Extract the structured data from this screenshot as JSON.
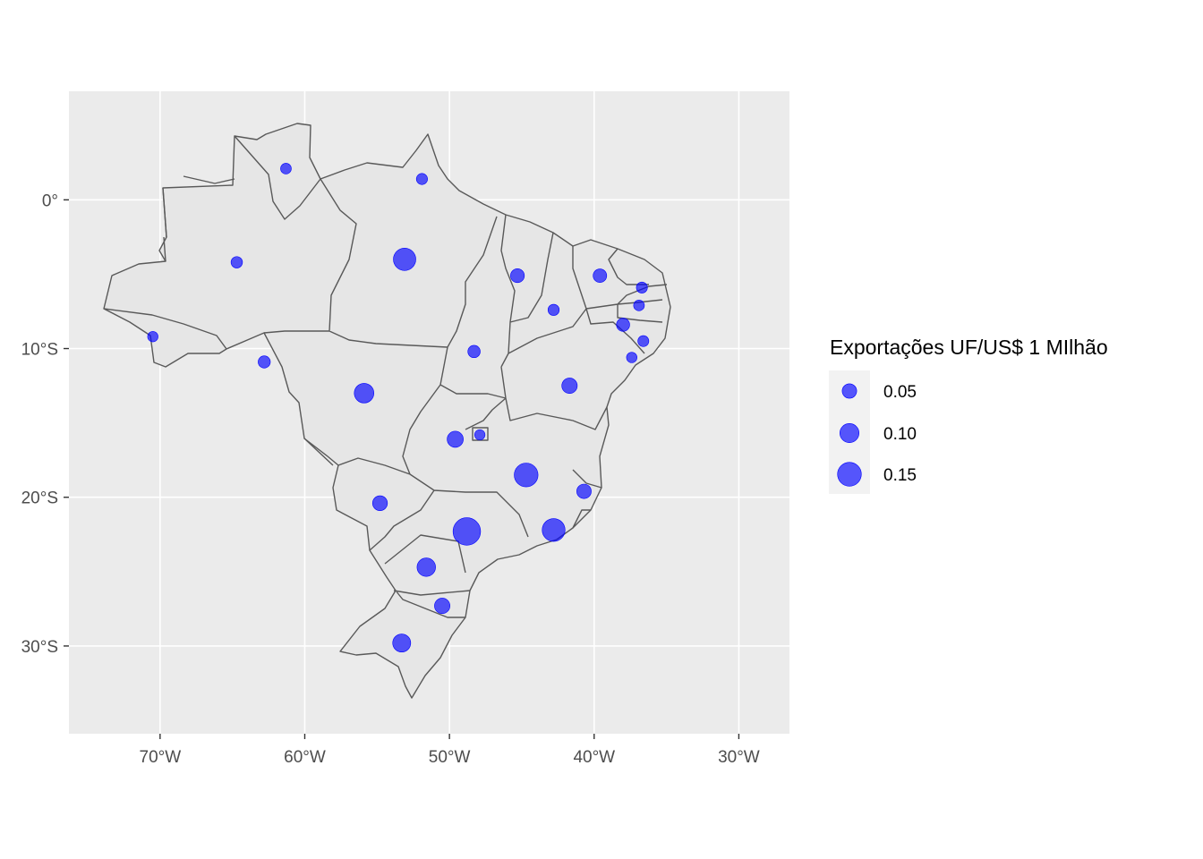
{
  "chart_data": {
    "type": "bubble-map",
    "title": "",
    "xlabel": "",
    "ylabel": "",
    "xlim": [
      -76.3,
      -26.5
    ],
    "ylim": [
      -35.9,
      7.3
    ],
    "x_ticks": [
      {
        "value": -70,
        "label": "70°W"
      },
      {
        "value": -60,
        "label": "60°W"
      },
      {
        "value": -50,
        "label": "50°W"
      },
      {
        "value": -40,
        "label": "40°W"
      },
      {
        "value": -30,
        "label": "30°W"
      }
    ],
    "y_ticks": [
      {
        "value": 0,
        "label": "0°"
      },
      {
        "value": -10,
        "label": "10°S"
      },
      {
        "value": -20,
        "label": "20°S"
      },
      {
        "value": -30,
        "label": "30°S"
      }
    ],
    "grid": true,
    "legend": {
      "title": "Exportações UF/US$ 1 MIlhão",
      "position": "right",
      "entries": [
        {
          "value": 0.05,
          "label": "0.05"
        },
        {
          "value": 0.1,
          "label": "0.10"
        },
        {
          "value": 0.15,
          "label": "0.15"
        }
      ]
    },
    "points": [
      {
        "lon": -61.3,
        "lat": 2.1,
        "value": 0.01
      },
      {
        "lon": -51.9,
        "lat": 1.4,
        "value": 0.014
      },
      {
        "lon": -64.7,
        "lat": -4.2,
        "value": 0.017
      },
      {
        "lon": -53.1,
        "lat": -4.0,
        "value": 0.135
      },
      {
        "lon": -70.5,
        "lat": -9.2,
        "value": 0.006
      },
      {
        "lon": -62.8,
        "lat": -10.9,
        "value": 0.025
      },
      {
        "lon": -55.9,
        "lat": -13.0,
        "value": 0.105
      },
      {
        "lon": -48.3,
        "lat": -10.2,
        "value": 0.027
      },
      {
        "lon": -45.3,
        "lat": -5.1,
        "value": 0.043
      },
      {
        "lon": -42.8,
        "lat": -7.4,
        "value": 0.015
      },
      {
        "lon": -39.6,
        "lat": -5.1,
        "value": 0.04
      },
      {
        "lon": -36.7,
        "lat": -5.9,
        "value": 0.013
      },
      {
        "lon": -36.9,
        "lat": -7.1,
        "value": 0.01
      },
      {
        "lon": -38.0,
        "lat": -8.4,
        "value": 0.036
      },
      {
        "lon": -36.6,
        "lat": -9.5,
        "value": 0.012
      },
      {
        "lon": -37.4,
        "lat": -10.6,
        "value": 0.007
      },
      {
        "lon": -41.7,
        "lat": -12.5,
        "value": 0.06
      },
      {
        "lon": -49.6,
        "lat": -16.1,
        "value": 0.068
      },
      {
        "lon": -47.9,
        "lat": -15.8,
        "value": 0.006
      },
      {
        "lon": -44.7,
        "lat": -18.5,
        "value": 0.15
      },
      {
        "lon": -40.7,
        "lat": -19.6,
        "value": 0.05
      },
      {
        "lon": -42.8,
        "lat": -22.2,
        "value": 0.14
      },
      {
        "lon": -48.8,
        "lat": -22.3,
        "value": 0.19
      },
      {
        "lon": -54.8,
        "lat": -20.4,
        "value": 0.054
      },
      {
        "lon": -51.6,
        "lat": -24.7,
        "value": 0.093
      },
      {
        "lon": -50.5,
        "lat": -27.3,
        "value": 0.06
      },
      {
        "lon": -53.3,
        "lat": -29.8,
        "value": 0.088
      }
    ],
    "colors": {
      "bubble": "#0000ff",
      "state_fill": "#e6e6e6",
      "state_border": "#595959",
      "panel": "#ebebeb",
      "grid": "#ffffff"
    }
  }
}
